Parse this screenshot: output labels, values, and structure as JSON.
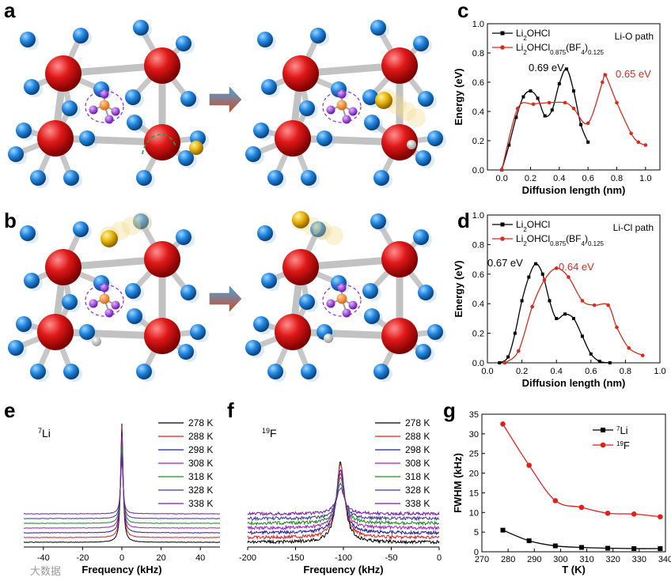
{
  "panel_letters": {
    "a": "a",
    "b": "b",
    "c": "c",
    "d": "d",
    "e": "e",
    "f": "f",
    "g": "g"
  },
  "watermark": "大数据",
  "chart_data": [
    {
      "id": "c",
      "type": "line",
      "xlabel": "Diffusion length (nm)",
      "ylabel": "Energy (eV)",
      "xlim": [
        -0.1,
        1.1
      ],
      "ylim": [
        0,
        1.0
      ],
      "xticks": [
        "0.0",
        "0.2",
        "0.4",
        "0.6",
        "0.8",
        "1.0"
      ],
      "yticks": [
        "0.0",
        "0.2",
        "0.4",
        "0.6",
        "0.8",
        "1.0"
      ],
      "path_label": "Li-O path",
      "legend_position": "top-left",
      "series": [
        {
          "name": "Li2OHCl",
          "legend": {
            "base": "Li",
            "sub1": "2",
            "mid": "OHCl",
            "sub2": "",
            "end": "",
            "sub3": ""
          },
          "color": "#000000",
          "marker": "square",
          "x": [
            0.0,
            0.05,
            0.1,
            0.15,
            0.2,
            0.25,
            0.3,
            0.35,
            0.4,
            0.45,
            0.5,
            0.55,
            0.6
          ],
          "y": [
            0.0,
            0.17,
            0.36,
            0.5,
            0.54,
            0.49,
            0.37,
            0.41,
            0.59,
            0.69,
            0.54,
            0.31,
            0.19
          ]
        },
        {
          "name": "Li2OHCl0.875(BF4)0.125",
          "legend": {
            "base": "Li",
            "sub1": "2",
            "mid": "OHCl",
            "sub2": "0.875",
            "end": "(BF",
            "sub3": "4"
          },
          "color": "#d62b1e",
          "marker": "circle",
          "x": [
            0.0,
            0.11,
            0.22,
            0.33,
            0.44,
            0.5,
            0.6,
            0.7,
            0.72,
            0.8,
            0.9,
            0.95,
            1.0
          ],
          "y": [
            0.0,
            0.42,
            0.45,
            0.46,
            0.46,
            0.42,
            0.32,
            0.6,
            0.65,
            0.46,
            0.25,
            0.19,
            0.17
          ]
        }
      ],
      "annotations": [
        {
          "text": "0.69 eV",
          "color": "#000000"
        },
        {
          "text": "0.65 eV",
          "color": "#d62b1e"
        }
      ]
    },
    {
      "id": "d",
      "type": "line",
      "xlabel": "Diffusion length (nm)",
      "ylabel": "Energy (eV)",
      "xlim": [
        0.0,
        1.0
      ],
      "ylim": [
        0,
        1.0
      ],
      "xticks": [
        "0.0",
        "0.2",
        "0.4",
        "0.6",
        "0.8",
        "1.0"
      ],
      "yticks": [
        "0.0",
        "0.2",
        "0.4",
        "0.6",
        "0.8",
        "1.0"
      ],
      "path_label": "Li-Cl path",
      "legend_position": "top-left",
      "series": [
        {
          "name": "Li2OHCl",
          "color": "#000000",
          "marker": "square",
          "x": [
            0.07,
            0.12,
            0.16,
            0.2,
            0.24,
            0.28,
            0.32,
            0.36,
            0.4,
            0.45,
            0.5,
            0.55,
            0.6,
            0.65,
            0.71
          ],
          "y": [
            0.0,
            0.04,
            0.2,
            0.42,
            0.58,
            0.67,
            0.6,
            0.42,
            0.3,
            0.33,
            0.3,
            0.18,
            0.06,
            0.01,
            0.0
          ]
        },
        {
          "name": "Li2OHCl0.875(BF4)0.125",
          "color": "#d62b1e",
          "marker": "circle",
          "x": [
            0.1,
            0.18,
            0.26,
            0.33,
            0.4,
            0.47,
            0.55,
            0.62,
            0.7,
            0.75,
            0.82,
            0.9
          ],
          "y": [
            0.0,
            0.08,
            0.38,
            0.56,
            0.64,
            0.58,
            0.42,
            0.39,
            0.39,
            0.24,
            0.1,
            0.05
          ]
        }
      ],
      "annotations": [
        {
          "text": "0.67 eV",
          "color": "#000000"
        },
        {
          "text": "0.64 eV",
          "color": "#d62b1e"
        }
      ]
    },
    {
      "id": "e",
      "type": "line",
      "xlabel": "Frequency (kHz)",
      "nucleus": {
        "mass": "7",
        "symbol": "Li"
      },
      "xlim": [
        -50,
        50
      ],
      "xticks": [
        "-40",
        "-20",
        "0",
        "20",
        "40"
      ],
      "series_names": [
        "278 K",
        "288 K",
        "298 K",
        "308 K",
        "318 K",
        "328 K",
        "338 K"
      ],
      "series_colors": [
        "#000000",
        "#e0211b",
        "#1f1f9e",
        "#a31fbf",
        "#1e8a1e",
        "#3b3b96",
        "#7a1fa6"
      ]
    },
    {
      "id": "f",
      "type": "line",
      "xlabel": "Frequency (kHz)",
      "nucleus": {
        "mass": "19",
        "symbol": "F"
      },
      "xlim": [
        -200,
        0
      ],
      "xticks": [
        "-200",
        "-150",
        "-100",
        "-50",
        "0"
      ],
      "series_names": [
        "278 K",
        "288 K",
        "298 K",
        "308 K",
        "318 K",
        "328 K",
        "338 K"
      ],
      "series_colors": [
        "#000000",
        "#e0211b",
        "#1f1f9e",
        "#a31fbf",
        "#1e8a1e",
        "#3b3b96",
        "#7a1fa6"
      ]
    },
    {
      "id": "g",
      "type": "line",
      "xlabel": "T (K)",
      "ylabel": "FWHM (kHz)",
      "xlim": [
        270,
        340
      ],
      "ylim": [
        0,
        35
      ],
      "xticks": [
        "270",
        "280",
        "290",
        "300",
        "310",
        "320",
        "330",
        "340"
      ],
      "yticks": [
        "0",
        "5",
        "10",
        "15",
        "20",
        "25",
        "30",
        "35"
      ],
      "legend_position": "top-right",
      "series": [
        {
          "name": "7Li",
          "label": {
            "mass": "7",
            "symbol": "Li"
          },
          "color": "#000000",
          "marker": "square",
          "x": [
            278,
            288,
            298,
            308,
            318,
            328,
            338
          ],
          "y": [
            5.5,
            2.8,
            1.5,
            1.1,
            0.9,
            0.8,
            0.8
          ]
        },
        {
          "name": "19F",
          "label": {
            "mass": "19",
            "symbol": "F"
          },
          "color": "#e0211b",
          "marker": "circle",
          "x": [
            278,
            288,
            298,
            308,
            318,
            328,
            338
          ],
          "y": [
            32.5,
            22.0,
            13.0,
            11.3,
            9.8,
            9.6,
            8.9
          ]
        }
      ]
    }
  ]
}
